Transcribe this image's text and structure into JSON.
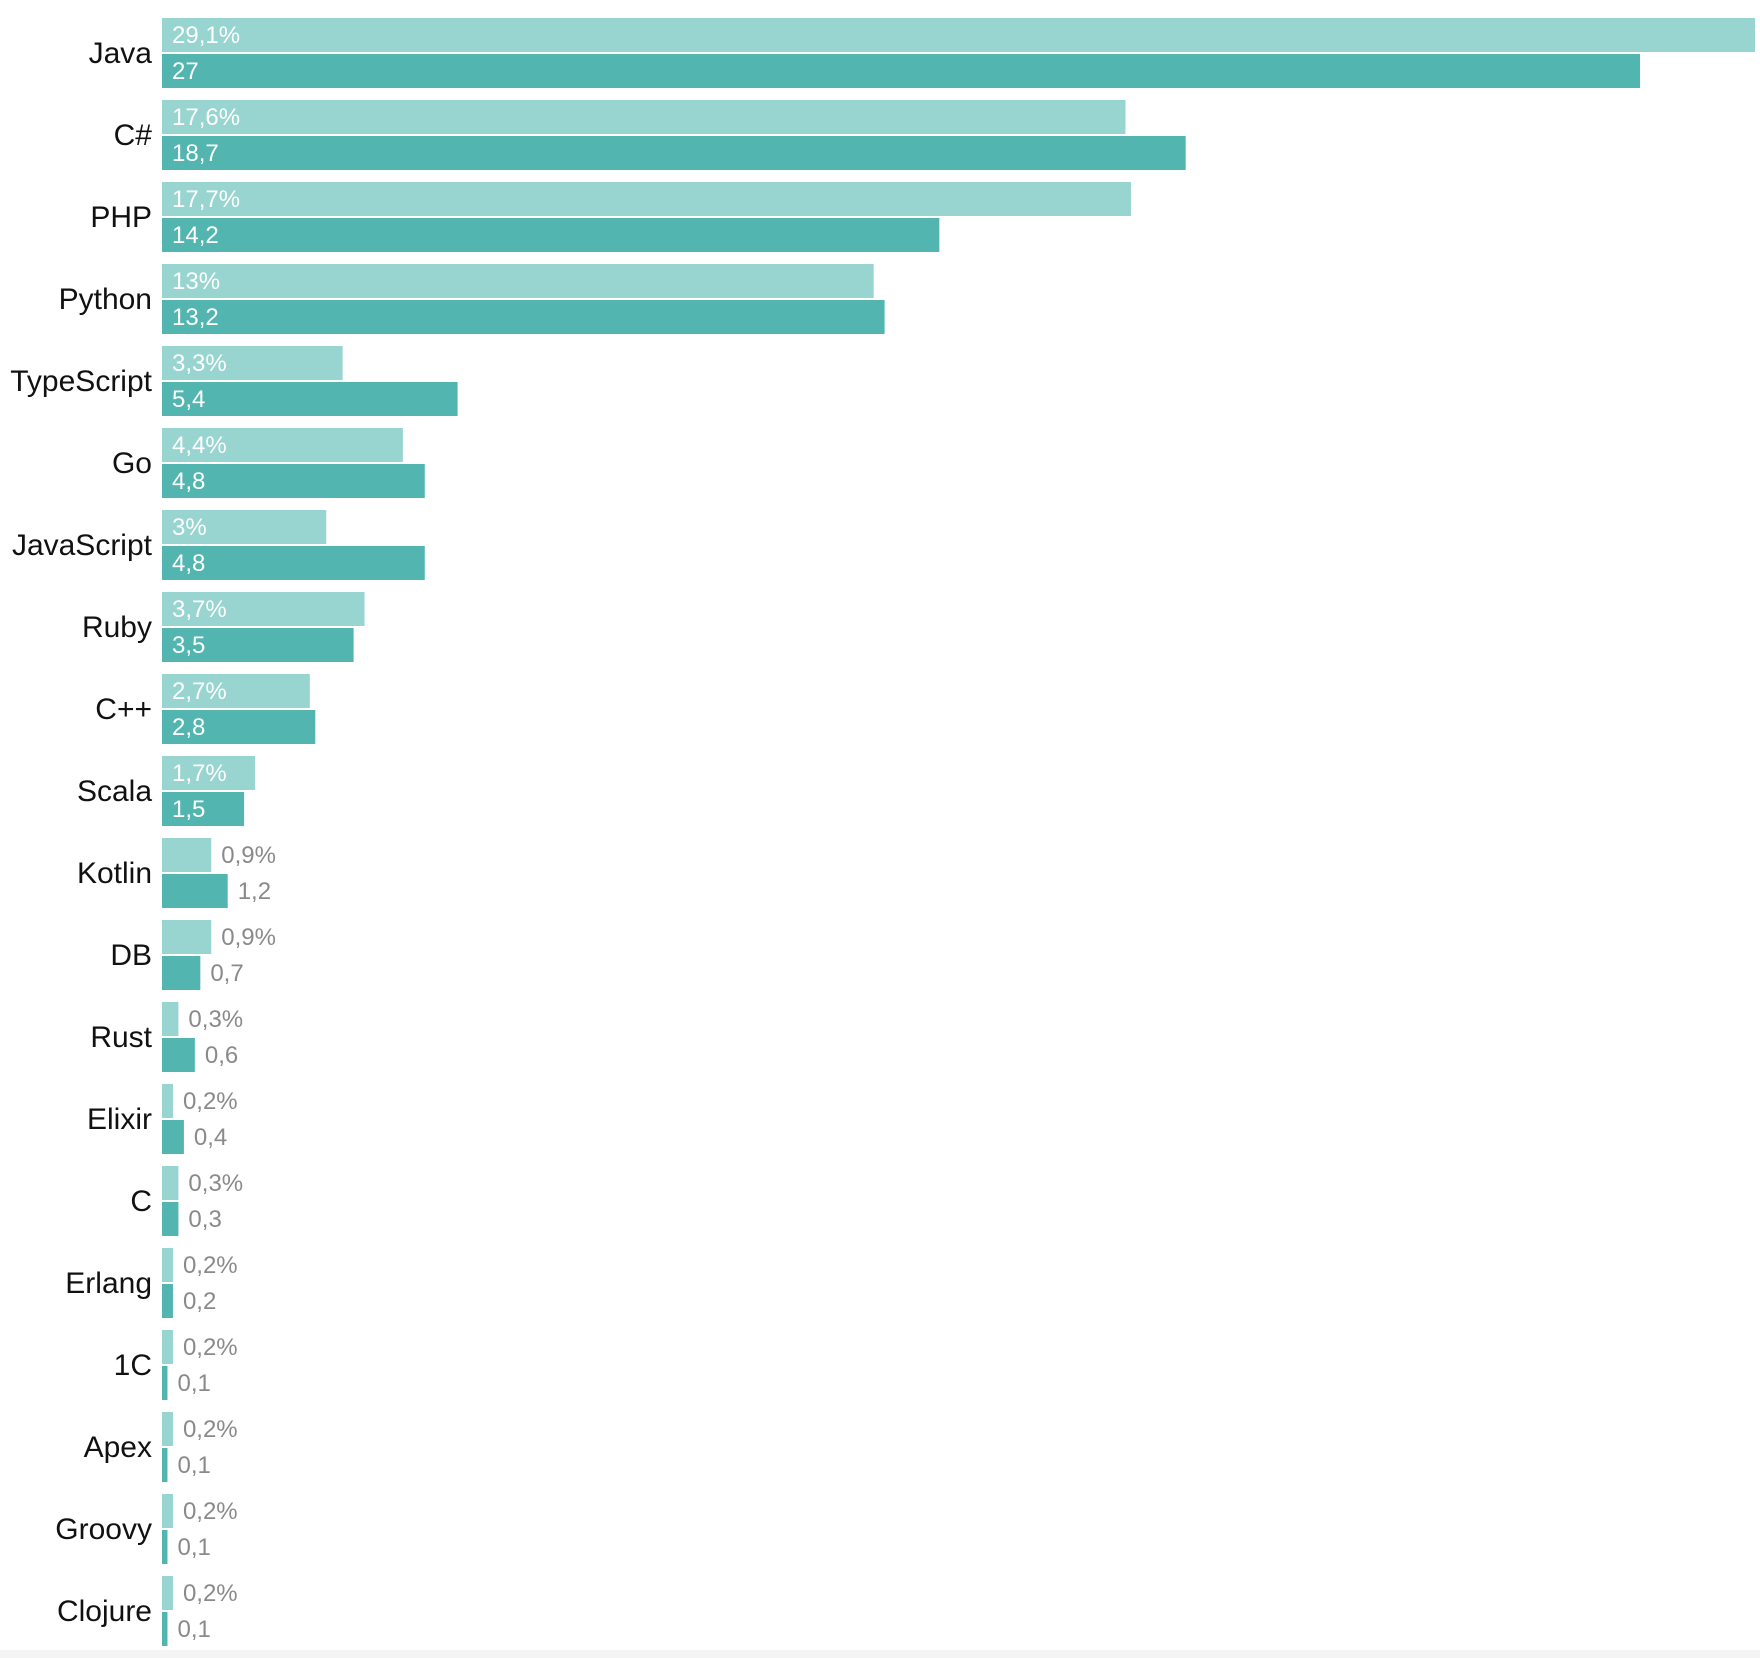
{
  "chart_data": {
    "type": "bar",
    "orientation": "horizontal",
    "title": "",
    "xlabel": "",
    "ylabel": "",
    "grid": false,
    "legend": "none",
    "categories": [
      "Java",
      "C#",
      "PHP",
      "Python",
      "TypeScript",
      "Go",
      "JavaScript",
      "Ruby",
      "C++",
      "Scala",
      "Kotlin",
      "DB",
      "Rust",
      "Elixir",
      "C",
      "Erlang",
      "1C",
      "Apex",
      "Groovy",
      "Clojure"
    ],
    "series": [
      {
        "color": "#98d4d0",
        "values": [
          29.1,
          17.6,
          17.7,
          13,
          3.3,
          4.4,
          3,
          3.7,
          2.7,
          1.7,
          0.9,
          0.9,
          0.3,
          0.2,
          0.3,
          0.2,
          0.2,
          0.2,
          0.2,
          0.2
        ],
        "labels": [
          "29,1%",
          "17,6%",
          "17,7%",
          "13%",
          "3,3%",
          "4,4%",
          "3%",
          "3,7%",
          "2,7%",
          "1,7%",
          "0,9%",
          "0,9%",
          "0,3%",
          "0,2%",
          "0,3%",
          "0,2%",
          "0,2%",
          "0,2%",
          "0,2%",
          "0,2%"
        ]
      },
      {
        "color": "#52b5b0",
        "values": [
          27,
          18.7,
          14.2,
          13.2,
          5.4,
          4.8,
          4.8,
          3.5,
          2.8,
          1.5,
          1.2,
          0.7,
          0.6,
          0.4,
          0.3,
          0.2,
          0.1,
          0.1,
          0.1,
          0.1
        ],
        "labels": [
          "27",
          "18,7",
          "14,2",
          "13,2",
          "5,4",
          "4,8",
          "4,8",
          "3,5",
          "2,8",
          "1,5",
          "1,2",
          "0,7",
          "0,6",
          "0,4",
          "0,3",
          "0,2",
          "0,1",
          "0,1",
          "0,1",
          "0,1"
        ]
      }
    ],
    "xlim": [
      0,
      29.1
    ]
  }
}
